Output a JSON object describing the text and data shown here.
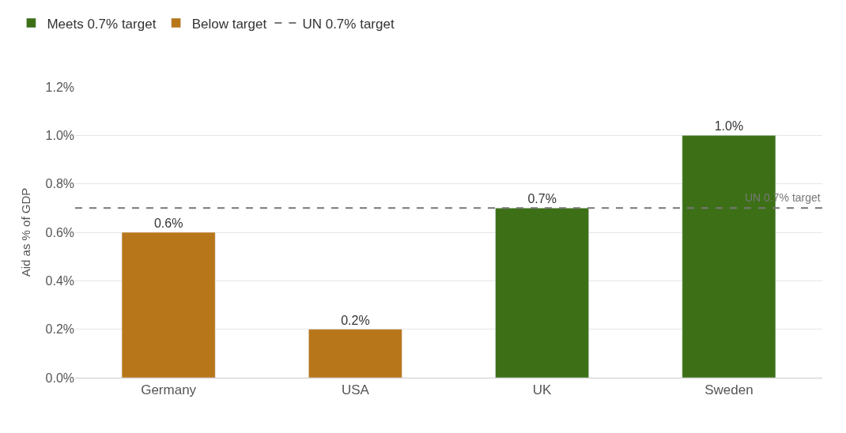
{
  "chart_data": {
    "type": "bar",
    "ylabel": "Aid as % of GDP",
    "categories": [
      "Germany",
      "USA",
      "UK",
      "Sweden"
    ],
    "series": [
      {
        "name": "Meets 0.7% target",
        "color": "#3d7016",
        "values": [
          null,
          null,
          0.7,
          1.0
        ],
        "value_labels": [
          null,
          null,
          "0.7%",
          "1.0%"
        ]
      },
      {
        "name": "Below target",
        "color": "#b8761a",
        "values": [
          0.6,
          0.2,
          null,
          null
        ],
        "value_labels": [
          "0.6%",
          "0.2%",
          null,
          null
        ]
      }
    ],
    "ylim": [
      0,
      1.2
    ],
    "yticks": [
      {
        "value": 0,
        "label": "0.0%"
      },
      {
        "value": 0.2,
        "label": "0.2%"
      },
      {
        "value": 0.4,
        "label": "0.4%"
      },
      {
        "value": 0.6,
        "label": "0.6%"
      },
      {
        "value": 0.8,
        "label": "0.8%"
      },
      {
        "value": 1.0,
        "label": "1.0%"
      },
      {
        "value": 1.2,
        "label": "1.2%"
      }
    ],
    "ref_lines": [
      {
        "axis": "y",
        "value": 0.7,
        "label": "UN 0.7% target",
        "color": "#777777",
        "line_style": "dashed"
      }
    ],
    "grid": "y",
    "legend": "top left"
  }
}
